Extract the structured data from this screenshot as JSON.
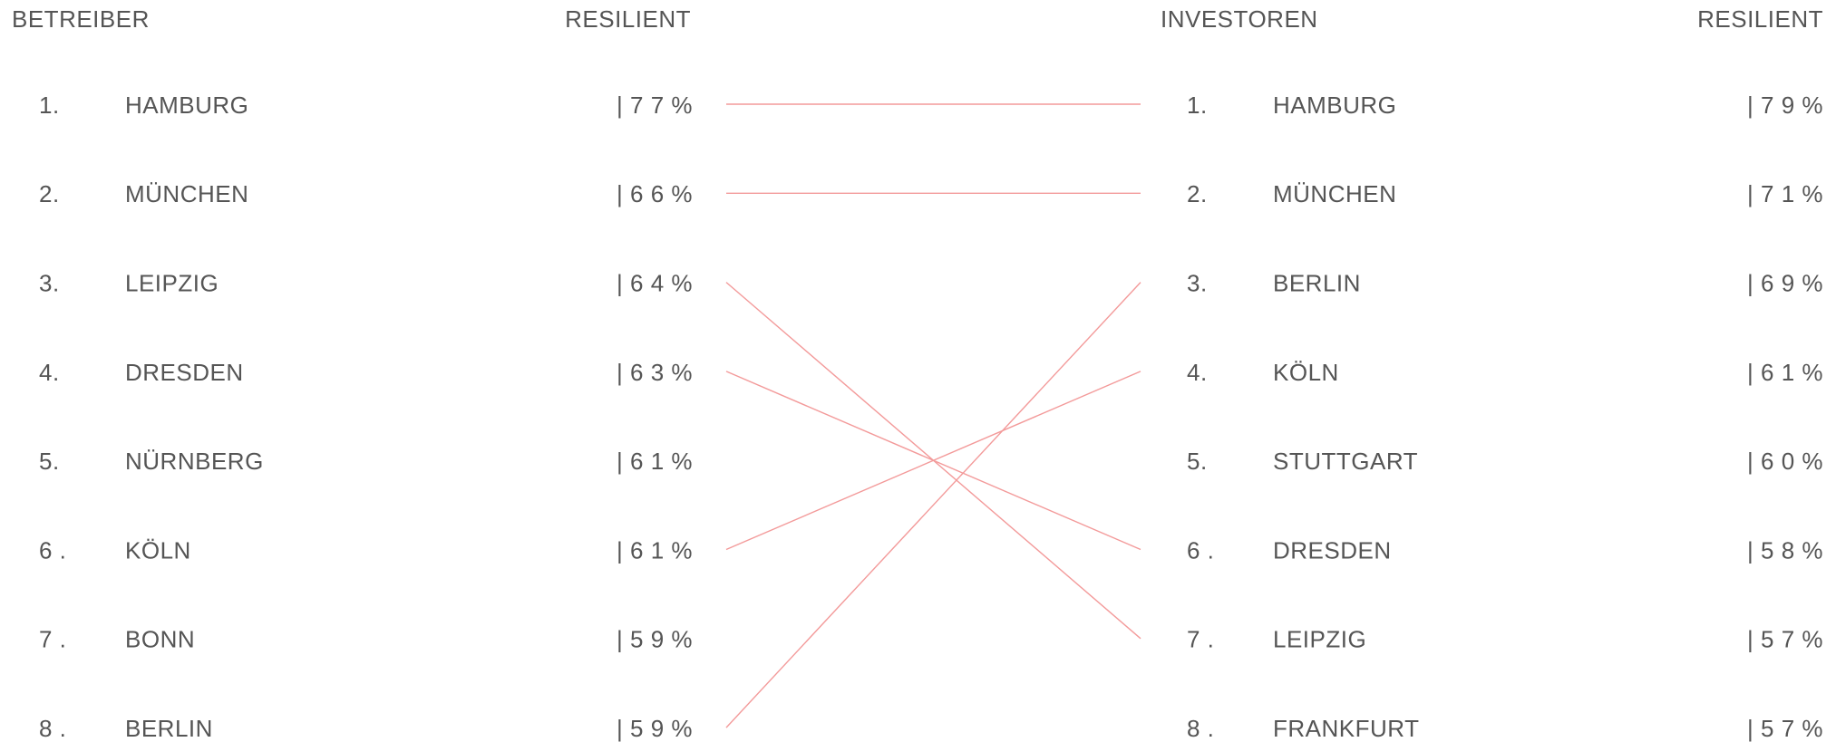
{
  "left": {
    "header": "BETREIBER",
    "value_header": "RESILIENT",
    "rows": [
      {
        "rank": "1.",
        "city": "HAMBURG",
        "value": "| 7 7 %"
      },
      {
        "rank": "2.",
        "city": "MÜNCHEN",
        "value": "| 6 6 %"
      },
      {
        "rank": "3.",
        "city": "LEIPZIG",
        "value": "| 6 4 %"
      },
      {
        "rank": "4.",
        "city": "DRESDEN",
        "value": "| 6 3 %"
      },
      {
        "rank": "5.",
        "city": "NÜRNBERG",
        "value": "| 6 1 %"
      },
      {
        "rank": "6 .",
        "city": "KÖLN",
        "value": "| 6 1 %"
      },
      {
        "rank": "7 .",
        "city": "BONN",
        "value": "| 5 9 %"
      },
      {
        "rank": "8 .",
        "city": "BERLIN",
        "value": "| 5 9 %"
      }
    ]
  },
  "right": {
    "header": "INVESTOREN",
    "value_header": "RESILIENT",
    "rows": [
      {
        "rank": "1.",
        "city": "HAMBURG",
        "value": "| 7 9 %"
      },
      {
        "rank": "2.",
        "city": "MÜNCHEN",
        "value": "| 7 1 %"
      },
      {
        "rank": "3.",
        "city": "BERLIN",
        "value": "| 6 9 %"
      },
      {
        "rank": "4.",
        "city": "KÖLN",
        "value": "| 6 1 %"
      },
      {
        "rank": "5.",
        "city": "STUTTGART",
        "value": "| 6 0 %"
      },
      {
        "rank": "6 .",
        "city": "DRESDEN",
        "value": "| 5 8 %"
      },
      {
        "rank": "7 .",
        "city": "LEIPZIG",
        "value": "| 5 7 %"
      },
      {
        "rank": "8 .",
        "city": "FRANKFURT",
        "value": "| 5 7 %"
      }
    ]
  }
}
